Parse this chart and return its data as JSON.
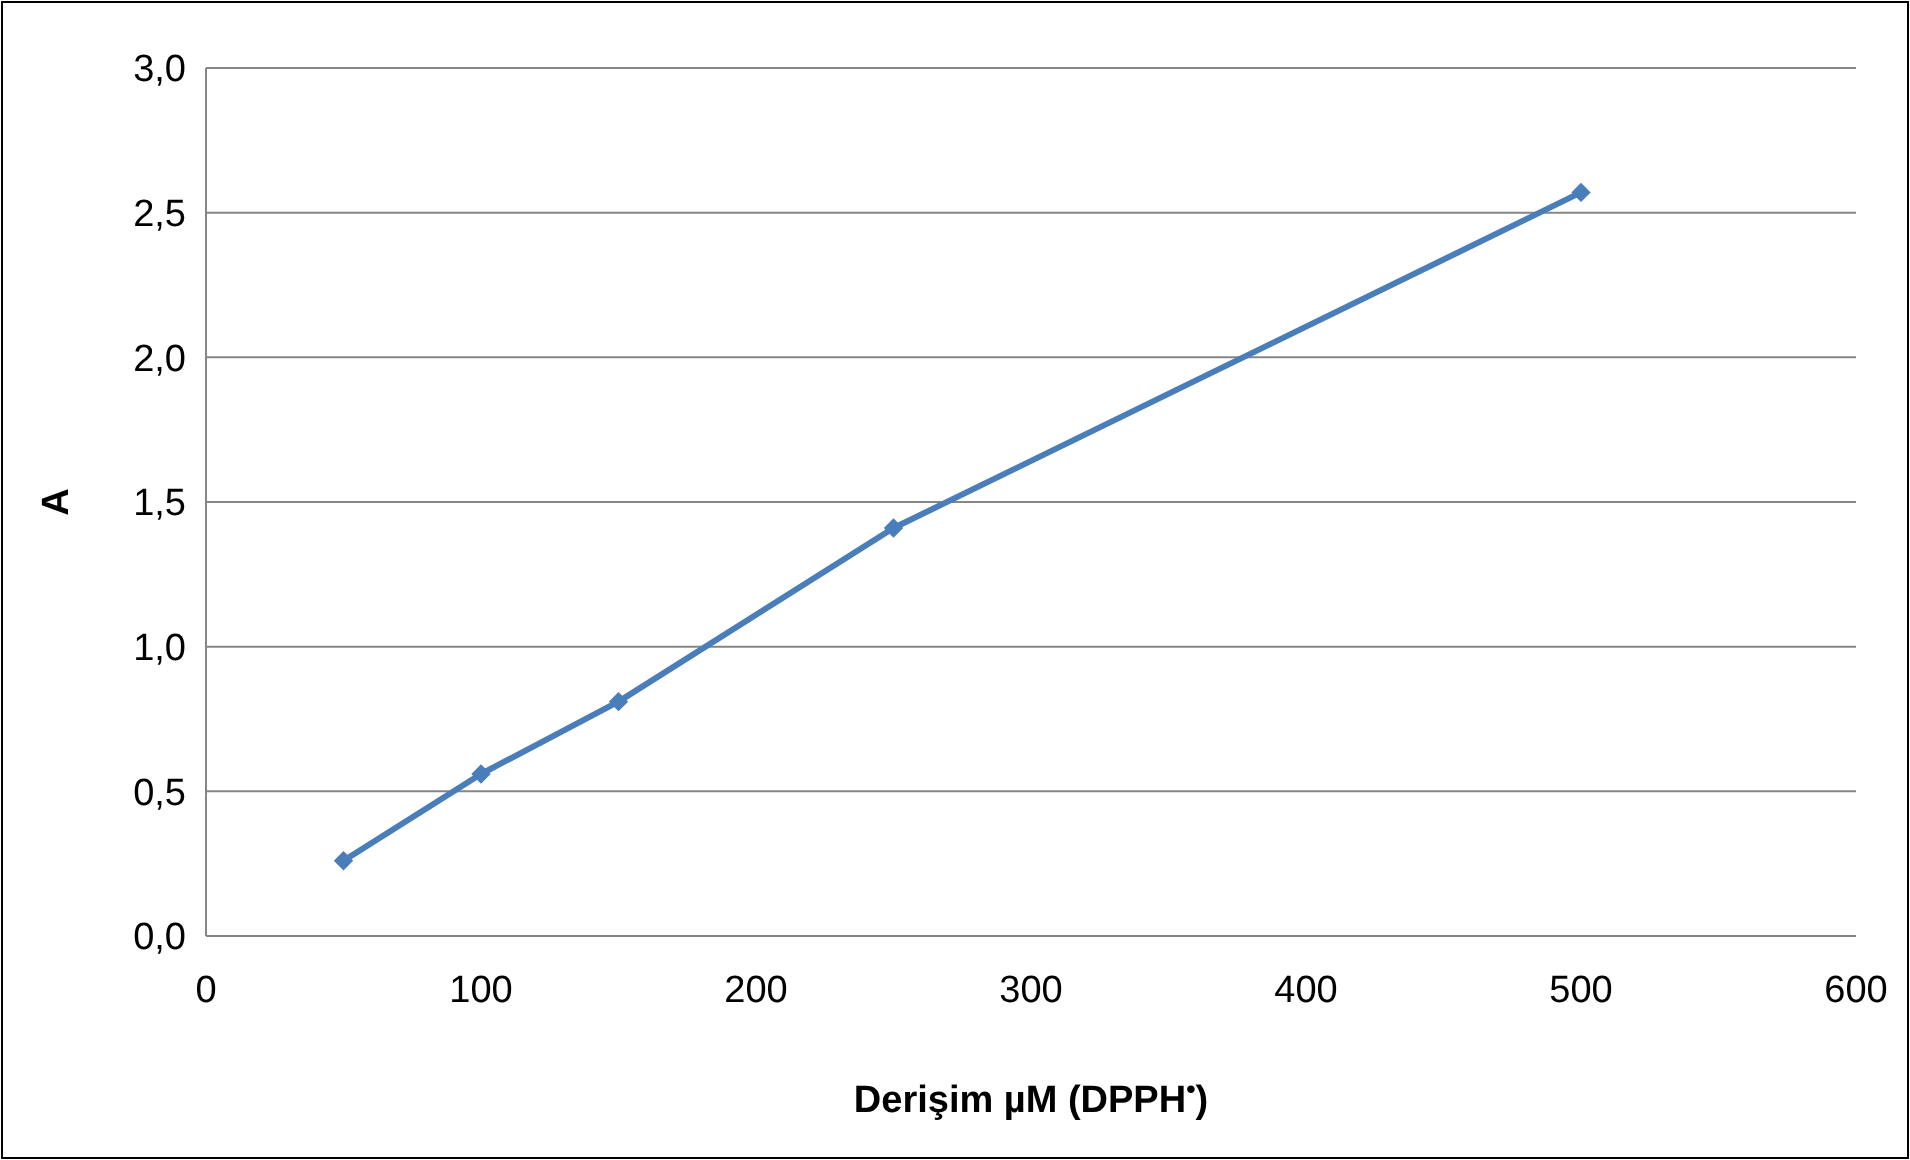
{
  "chart_data": {
    "type": "line",
    "xlabel": "Derişim µM (DPPH$^{•}$)",
    "ylabel": "A",
    "x": [
      50,
      100,
      150,
      250,
      500
    ],
    "series": [
      {
        "color": "#4a7ebb",
        "values": [
          0.26,
          0.56,
          0.81,
          1.41,
          2.57
        ]
      }
    ],
    "xlim": [
      0,
      600
    ],
    "xticks": [
      0,
      100,
      200,
      300,
      400,
      500,
      600
    ],
    "ylim": [
      0,
      3
    ],
    "yticks": [
      {
        "value": 0,
        "label": "0,0"
      },
      {
        "value": 0.5,
        "label": "0,5"
      },
      {
        "value": 1,
        "label": "1,0"
      },
      {
        "value": 1.5,
        "label": "1,5"
      },
      {
        "value": 2,
        "label": "2,0"
      },
      {
        "value": 2.5,
        "label": "2,5"
      },
      {
        "value": 3,
        "label": "3,0"
      }
    ],
    "grid": "y",
    "marker": "diamond",
    "line_style": "solid"
  }
}
